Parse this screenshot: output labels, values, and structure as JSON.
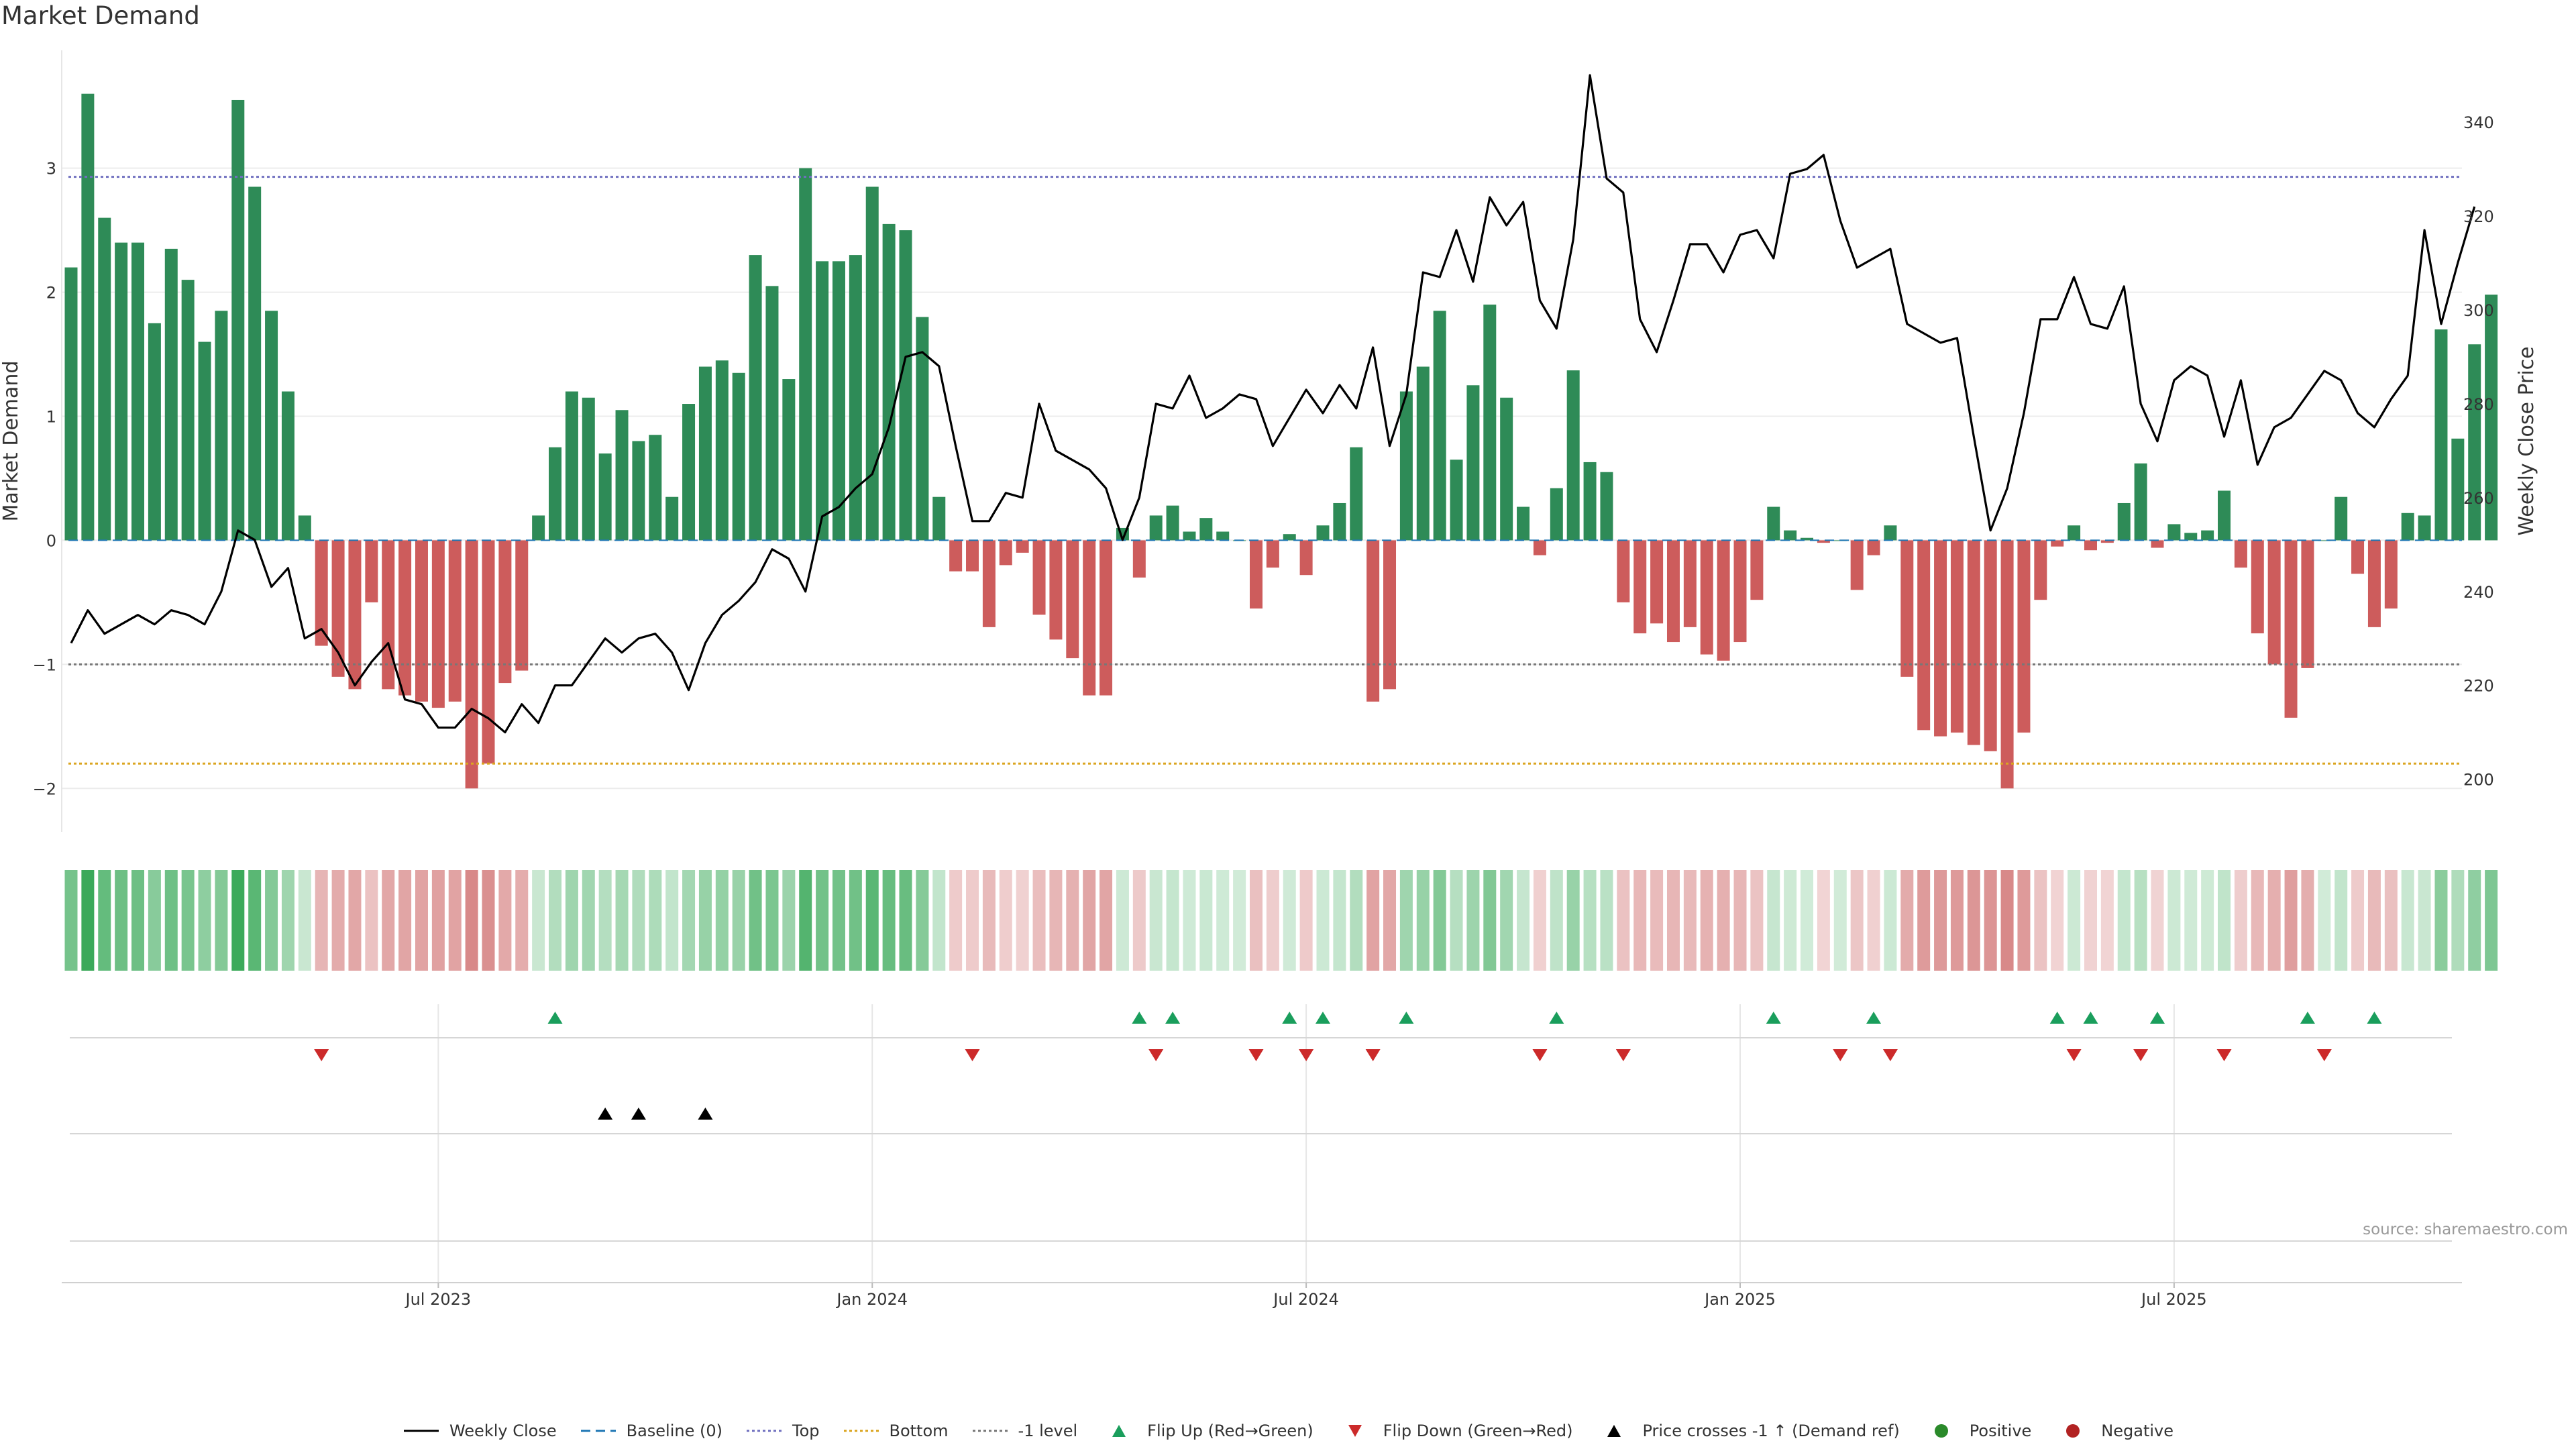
{
  "title": "Market Demand",
  "source": "source: sharemaestro.com",
  "colors": {
    "positive": "#2e8b57",
    "negative": "#cd5c5c",
    "line": "#000000",
    "top": "#7070c0",
    "bottom": "#dba520",
    "minus1": "#777777",
    "baseline": "#1f77b4",
    "flip_up": "#1a9e5c",
    "flip_down": "#cc2a2a",
    "cross": "#000000",
    "pos_dot": "#2a8a2a",
    "neg_dot": "#b22222"
  },
  "chart_data": {
    "type": "bar",
    "title": "Market Demand",
    "ylabel": "Market Demand",
    "y2label": "Weekly Close Price",
    "ylim": [
      -2.35,
      3.95
    ],
    "y2lim": [
      188.8,
      355.3
    ],
    "yticks": [
      -2,
      -1,
      0,
      1,
      2,
      3
    ],
    "yticklabels": [
      "−2",
      "−1",
      "0",
      "1",
      "2",
      "3"
    ],
    "y2ticks": [
      200,
      220,
      240,
      260,
      280,
      300,
      320,
      340
    ],
    "xticks": [
      {
        "index": 22,
        "label": "Jul 2023"
      },
      {
        "index": 48,
        "label": "Jan 2024"
      },
      {
        "index": 74,
        "label": "Jul 2024"
      },
      {
        "index": 100,
        "label": "Jan 2025"
      },
      {
        "index": 126,
        "label": "Jul 2025"
      }
    ],
    "levels": {
      "baseline": 0,
      "top": 2.93,
      "bottom": -1.8,
      "minus_one": -1
    },
    "series": [
      {
        "name": "Market Demand",
        "axis": "left",
        "type": "bar",
        "values": [
          2.2,
          3.6,
          2.6,
          2.4,
          2.4,
          1.75,
          2.35,
          2.1,
          1.6,
          1.85,
          3.55,
          2.85,
          1.85,
          1.2,
          0.2,
          -0.85,
          -1.1,
          -1.2,
          -0.5,
          -1.2,
          -1.25,
          -1.3,
          -1.35,
          -1.3,
          -2.0,
          -1.8,
          -1.15,
          -1.05,
          0.2,
          0.75,
          1.2,
          1.15,
          0.7,
          1.05,
          0.8,
          0.85,
          0.35,
          1.1,
          1.4,
          1.45,
          1.35,
          2.3,
          2.05,
          1.3,
          3.0,
          2.25,
          2.25,
          2.3,
          2.85,
          2.55,
          2.5,
          1.8,
          0.35,
          -0.25,
          -0.25,
          -0.7,
          -0.2,
          -0.1,
          -0.6,
          -0.8,
          -0.95,
          -1.25,
          -1.25,
          0.1,
          -0.3,
          0.2,
          0.28,
          0.07,
          0.18,
          0.07,
          0.0,
          -0.55,
          -0.22,
          0.05,
          -0.28,
          0.12,
          0.3,
          0.75,
          -1.3,
          -1.2,
          1.2,
          1.4,
          1.85,
          0.65,
          1.25,
          1.9,
          1.15,
          0.27,
          -0.12,
          0.42,
          1.37,
          0.63,
          0.55,
          -0.5,
          -0.75,
          -0.67,
          -0.82,
          -0.7,
          -0.92,
          -0.97,
          -0.82,
          -0.48,
          0.27,
          0.08,
          0.02,
          -0.02,
          0.0,
          -0.4,
          -0.12,
          0.12,
          -1.1,
          -1.53,
          -1.58,
          -1.55,
          -1.65,
          -1.7,
          -2.0,
          -1.55,
          -0.48,
          -0.05,
          0.12,
          -0.08,
          -0.02,
          0.3,
          0.62,
          -0.06,
          0.13,
          0.06,
          0.08,
          0.4,
          -0.22,
          -0.75,
          -1.0,
          -1.43,
          -1.03,
          0.0,
          0.35,
          -0.27,
          -0.7,
          -0.55,
          0.22,
          0.2,
          1.7,
          0.82,
          1.58,
          1.98
        ]
      },
      {
        "name": "Weekly Close",
        "axis": "right",
        "type": "line",
        "values": [
          229,
          236,
          231,
          233,
          235,
          233,
          236,
          235,
          233,
          240,
          253,
          251,
          241,
          245,
          230,
          232,
          227,
          220,
          225,
          229,
          217,
          216,
          211,
          211,
          215,
          213,
          210,
          216,
          212,
          220,
          220,
          225,
          230,
          227,
          230,
          231,
          227,
          219,
          229,
          235,
          238,
          242,
          249,
          247,
          240,
          256,
          258,
          262,
          265,
          275,
          290,
          291,
          288,
          271,
          255,
          255,
          261,
          260,
          280,
          270,
          268,
          266,
          262,
          251,
          260,
          280,
          279,
          286,
          277,
          279,
          282,
          281,
          271,
          277,
          283,
          278,
          284,
          279,
          292,
          271,
          282,
          308,
          307,
          317,
          306,
          324,
          318,
          323,
          302,
          296,
          315,
          350,
          328,
          325,
          298,
          291,
          302,
          314,
          314,
          308,
          316,
          317,
          311,
          329,
          330,
          333,
          319,
          309,
          311,
          313,
          297,
          295,
          293,
          294,
          273,
          253,
          262,
          278,
          298,
          298,
          307,
          297,
          296,
          305,
          280,
          272,
          285,
          288,
          286,
          273,
          285,
          267,
          275,
          277,
          282,
          287,
          285,
          278,
          275,
          281,
          286,
          317,
          297,
          310,
          322
        ]
      }
    ],
    "flip_up_index": [
      29,
      64,
      66,
      73,
      75,
      80,
      89,
      102,
      108,
      119,
      121,
      125,
      134,
      138
    ],
    "flip_down_index": [
      15,
      54,
      65,
      71,
      74,
      78,
      88,
      93,
      106,
      109,
      120,
      124,
      129,
      135
    ],
    "price_cross_index": [
      32,
      34,
      38
    ],
    "legend": [
      {
        "key": "line",
        "label": "Weekly Close"
      },
      {
        "key": "baseline",
        "label": "Baseline (0)"
      },
      {
        "key": "top",
        "label": "Top"
      },
      {
        "key": "bottom",
        "label": "Bottom"
      },
      {
        "key": "minus1",
        "label": "-1 level"
      },
      {
        "key": "flip_up",
        "label": "Flip Up (Red→Green)"
      },
      {
        "key": "flip_down",
        "label": "Flip Down (Green→Red)"
      },
      {
        "key": "cross",
        "label": "Price crosses -1 ↑ (Demand ref)"
      },
      {
        "key": "pos_dot",
        "label": "Positive"
      },
      {
        "key": "neg_dot",
        "label": "Negative"
      }
    ]
  }
}
